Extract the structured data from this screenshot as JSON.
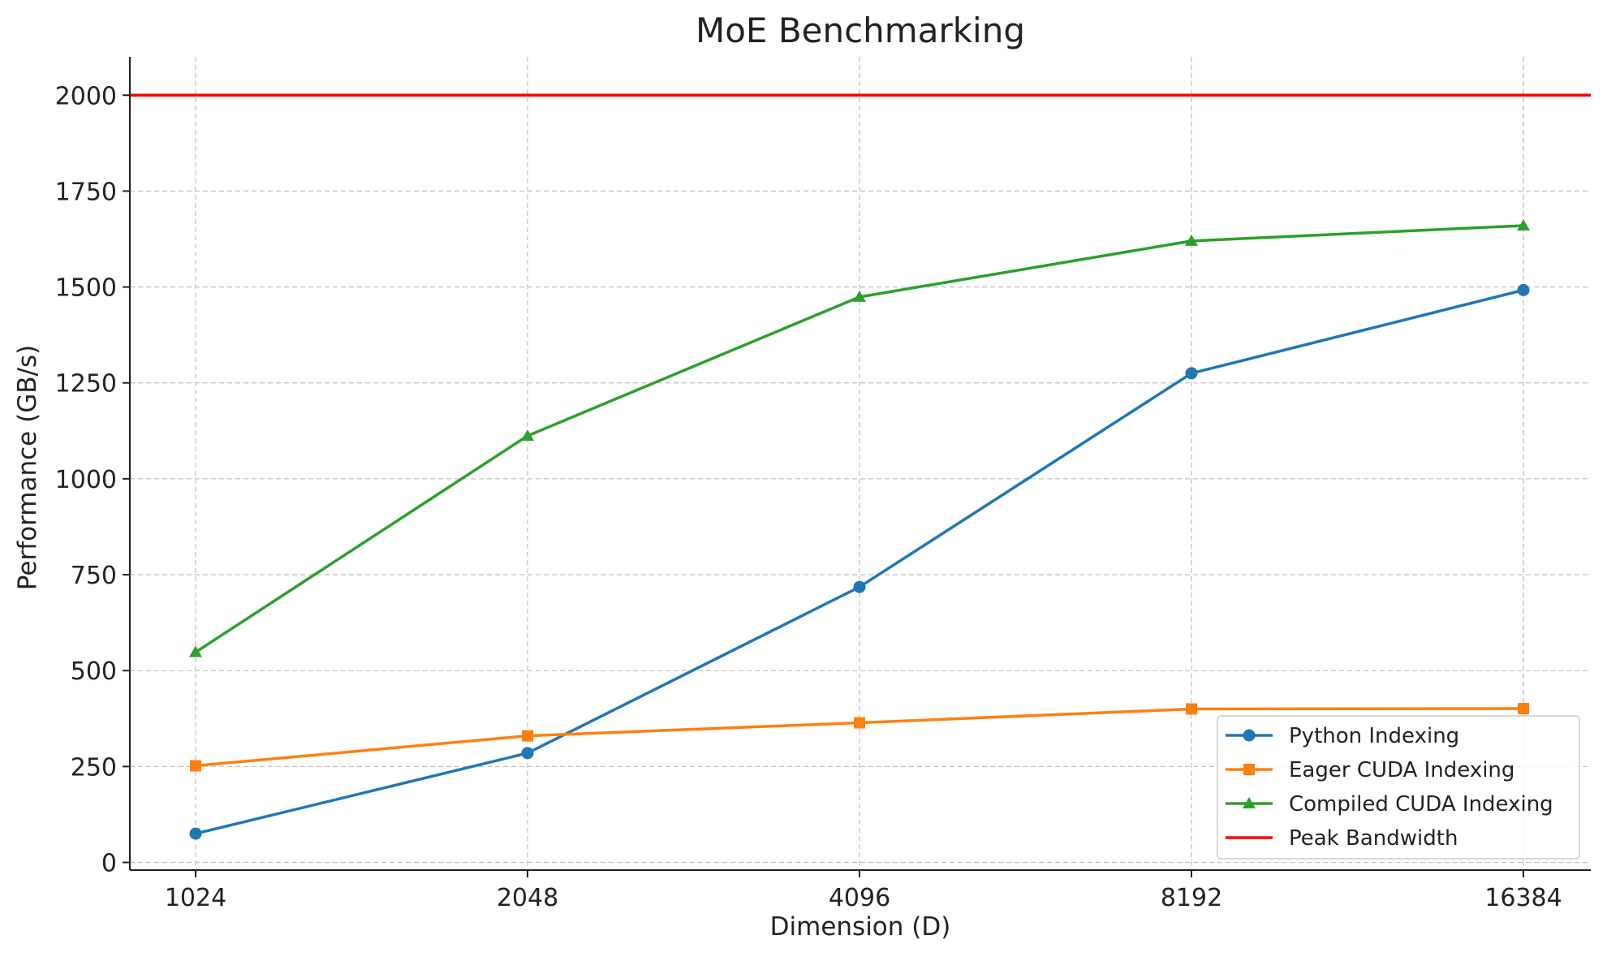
{
  "chart_data": {
    "type": "line",
    "title": "MoE Benchmarking",
    "xlabel": "Dimension (D)",
    "ylabel": "Performance (GB/s)",
    "categories": [
      "1024",
      "2048",
      "4096",
      "8192",
      "16384"
    ],
    "ylim": [
      -20,
      2100
    ],
    "yticks": [
      0,
      250,
      500,
      750,
      1000,
      1250,
      1500,
      1750,
      2000
    ],
    "grid": true,
    "legend_position": "bottom-right",
    "series": [
      {
        "name": "Python Indexing",
        "marker": "circle",
        "color": "#1f77b4",
        "values": [
          75,
          285,
          718,
          1275,
          1492
        ]
      },
      {
        "name": "Eager CUDA Indexing",
        "marker": "square",
        "color": "#ff7f0e",
        "values": [
          252,
          330,
          364,
          400,
          401
        ]
      },
      {
        "name": "Compiled CUDA Indexing",
        "marker": "triangle",
        "color": "#2ca02c",
        "values": [
          548,
          1112,
          1474,
          1620,
          1660
        ]
      }
    ],
    "reference_lines": [
      {
        "name": "Peak Bandwidth",
        "value": 2000,
        "color": "#ff0000"
      }
    ]
  }
}
